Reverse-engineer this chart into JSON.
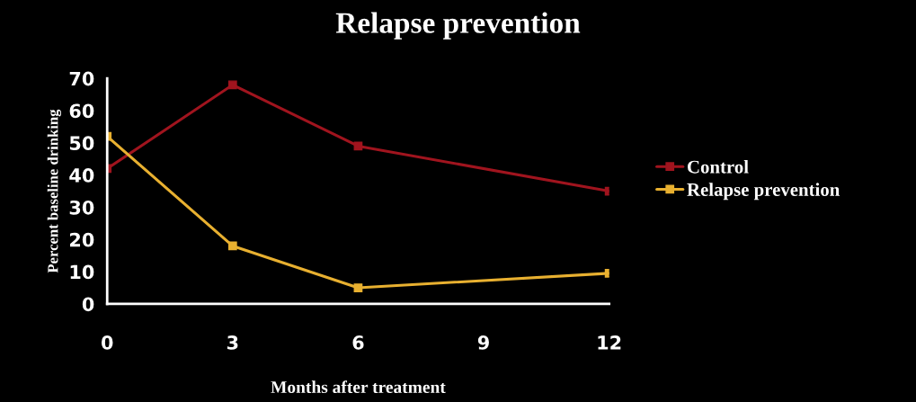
{
  "chart_data": {
    "type": "line",
    "title": "Relapse prevention",
    "xlabel": "Months after treatment",
    "ylabel": "Percent baseline drinking",
    "x": [
      0,
      3,
      6,
      9,
      12
    ],
    "series": [
      {
        "name": "Control",
        "color": "#a0141e",
        "values": [
          42,
          68,
          49,
          null,
          35
        ]
      },
      {
        "name": "Relapse prevention",
        "color": "#e8b030",
        "values": [
          52,
          18,
          5,
          null,
          9.5
        ]
      }
    ],
    "xlim": [
      0,
      12
    ],
    "xticks": [
      0,
      3,
      6,
      9,
      12
    ],
    "ylim": [
      0,
      70
    ],
    "yticks": [
      0,
      10,
      20,
      30,
      40,
      50,
      60,
      70
    ],
    "grid": false,
    "legend": "right",
    "marker": "square",
    "line_style": "solid"
  }
}
